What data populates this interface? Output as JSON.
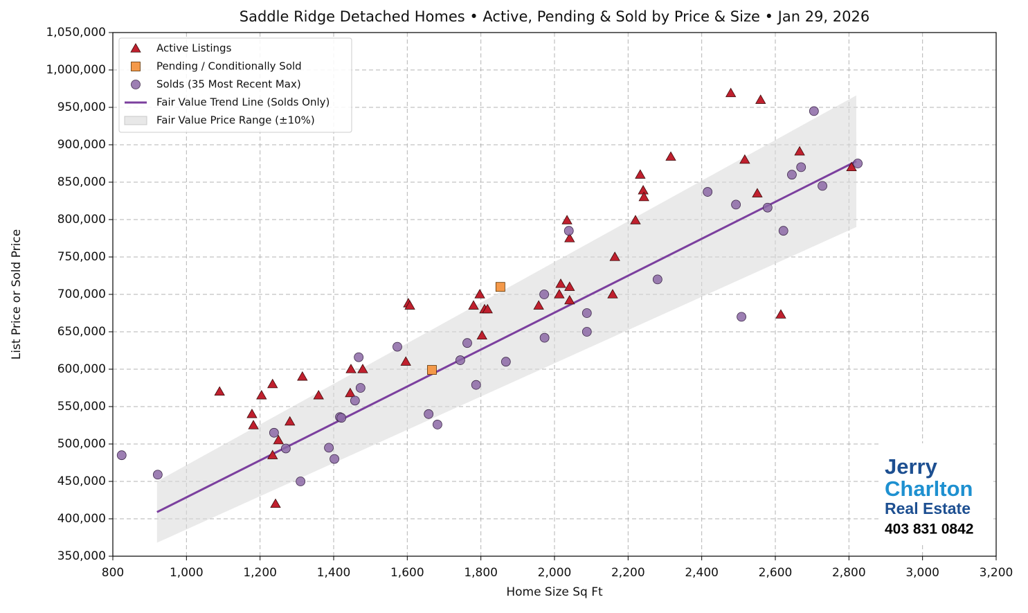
{
  "chart_data": {
    "type": "scatter",
    "title": "Saddle Ridge Detached Homes • Active, Pending & Sold by Price & Size • Jan 29, 2026",
    "xlabel": "Home Size Sq Ft",
    "ylabel": "List Price or Sold Price",
    "xlim": [
      800,
      3200
    ],
    "ylim": [
      350000,
      1050000
    ],
    "xticks": [
      800,
      {
        "value": 1000,
        "label": "1,000"
      },
      {
        "value": 1200,
        "label": "1,200"
      },
      {
        "value": 1400,
        "label": "1,400"
      },
      {
        "value": 1600,
        "label": "1,600"
      },
      {
        "value": 1800,
        "label": "1,800"
      },
      {
        "value": 2000,
        "label": "2,000"
      },
      {
        "value": 2200,
        "label": "2,200"
      },
      {
        "value": 2400,
        "label": "2,400"
      },
      {
        "value": 2600,
        "label": "2,600"
      },
      {
        "value": 2800,
        "label": "2,800"
      },
      {
        "value": 3000,
        "label": "3,000"
      },
      {
        "value": 3200,
        "label": "3,200"
      }
    ],
    "yticks": [
      {
        "value": 350000,
        "label": "350,000"
      },
      {
        "value": 400000,
        "label": "400,000"
      },
      {
        "value": 450000,
        "label": "450,000"
      },
      {
        "value": 500000,
        "label": "500,000"
      },
      {
        "value": 550000,
        "label": "550,000"
      },
      {
        "value": 600000,
        "label": "600,000"
      },
      {
        "value": 650000,
        "label": "650,000"
      },
      {
        "value": 700000,
        "label": "700,000"
      },
      {
        "value": 750000,
        "label": "750,000"
      },
      {
        "value": 800000,
        "label": "800,000"
      },
      {
        "value": 850000,
        "label": "850,000"
      },
      {
        "value": 900000,
        "label": "900,000"
      },
      {
        "value": 950000,
        "label": "950,000"
      },
      {
        "value": 1000000,
        "label": "1,000,000"
      },
      {
        "value": 1050000,
        "label": "1,050,000"
      }
    ],
    "grid": true,
    "legend": "upper left",
    "series": [
      {
        "name": "Active Listings",
        "style": "triangle",
        "color": "#c0202e",
        "x": [
          1090,
          1204,
          1178,
          1182,
          1234,
          1234,
          1250,
          1242,
          1281,
          1315,
          1359,
          1445,
          1447,
          1479,
          1596,
          1603,
          1607,
          1780,
          1797,
          1803,
          1810,
          1818,
          1957,
          2013,
          2017,
          2034,
          2041,
          2041,
          2041,
          2158,
          2164,
          2220,
          2233,
          2241,
          2243,
          2316,
          2479,
          2517,
          2551,
          2560,
          2615,
          2666,
          2807
        ],
        "values": [
          570000,
          565000,
          540000,
          525000,
          580000,
          485000,
          505000,
          420000,
          530000,
          590000,
          565000,
          568000,
          600000,
          600000,
          610000,
          688000,
          685000,
          685000,
          700000,
          645000,
          680000,
          680000,
          685000,
          700000,
          714000,
          799000,
          775000,
          692000,
          710000,
          700000,
          750000,
          799000,
          860000,
          839000,
          830000,
          884000,
          969000,
          880000,
          835000,
          960000,
          673000,
          891000,
          870000
        ]
      },
      {
        "name": "Pending / Conditionally Sold",
        "style": "square",
        "color": "#f4994a",
        "x": [
          1853,
          1667
        ],
        "values": [
          710000,
          599000
        ]
      },
      {
        "name": "Solds (35 Most Recent Max)",
        "style": "circle",
        "color": "#8c68a6",
        "x": [
          824,
          922,
          1238,
          1270,
          1310,
          1387,
          1402,
          1417,
          1421,
          1458,
          1468,
          1473,
          1573,
          1658,
          1682,
          1744,
          1763,
          1787,
          1868,
          1972,
          1973,
          2039,
          2088,
          2088,
          2280,
          2416,
          2493,
          2508,
          2579,
          2622,
          2645,
          2670,
          2705,
          2728,
          2824
        ],
        "values": [
          485000,
          459000,
          515000,
          494000,
          450000,
          495000,
          480000,
          536000,
          535000,
          558000,
          616000,
          575000,
          630000,
          540000,
          526000,
          612000,
          635000,
          579000,
          610000,
          700000,
          642000,
          785000,
          675000,
          650000,
          720000,
          837000,
          820000,
          670000,
          816000,
          785000,
          860000,
          870000,
          945000,
          845000,
          875000
        ]
      },
      {
        "name": "Fair Value Trend Line (Solds Only)",
        "style": "line",
        "color": "#7b3f9e",
        "x": [
          920,
          2820
        ],
        "values": [
          409000,
          878000
        ]
      },
      {
        "name": "Fair Value Price Range (±10%)",
        "style": "band",
        "color": "#d8d8d8",
        "x": [
          920,
          2820
        ],
        "lower": [
          368000,
          790000
        ],
        "upper": [
          450000,
          966000
        ]
      }
    ]
  },
  "logo": {
    "line1": "Jerry",
    "line2": "Charlton",
    "line3": "Real Estate",
    "phone": "403 831 0842"
  }
}
